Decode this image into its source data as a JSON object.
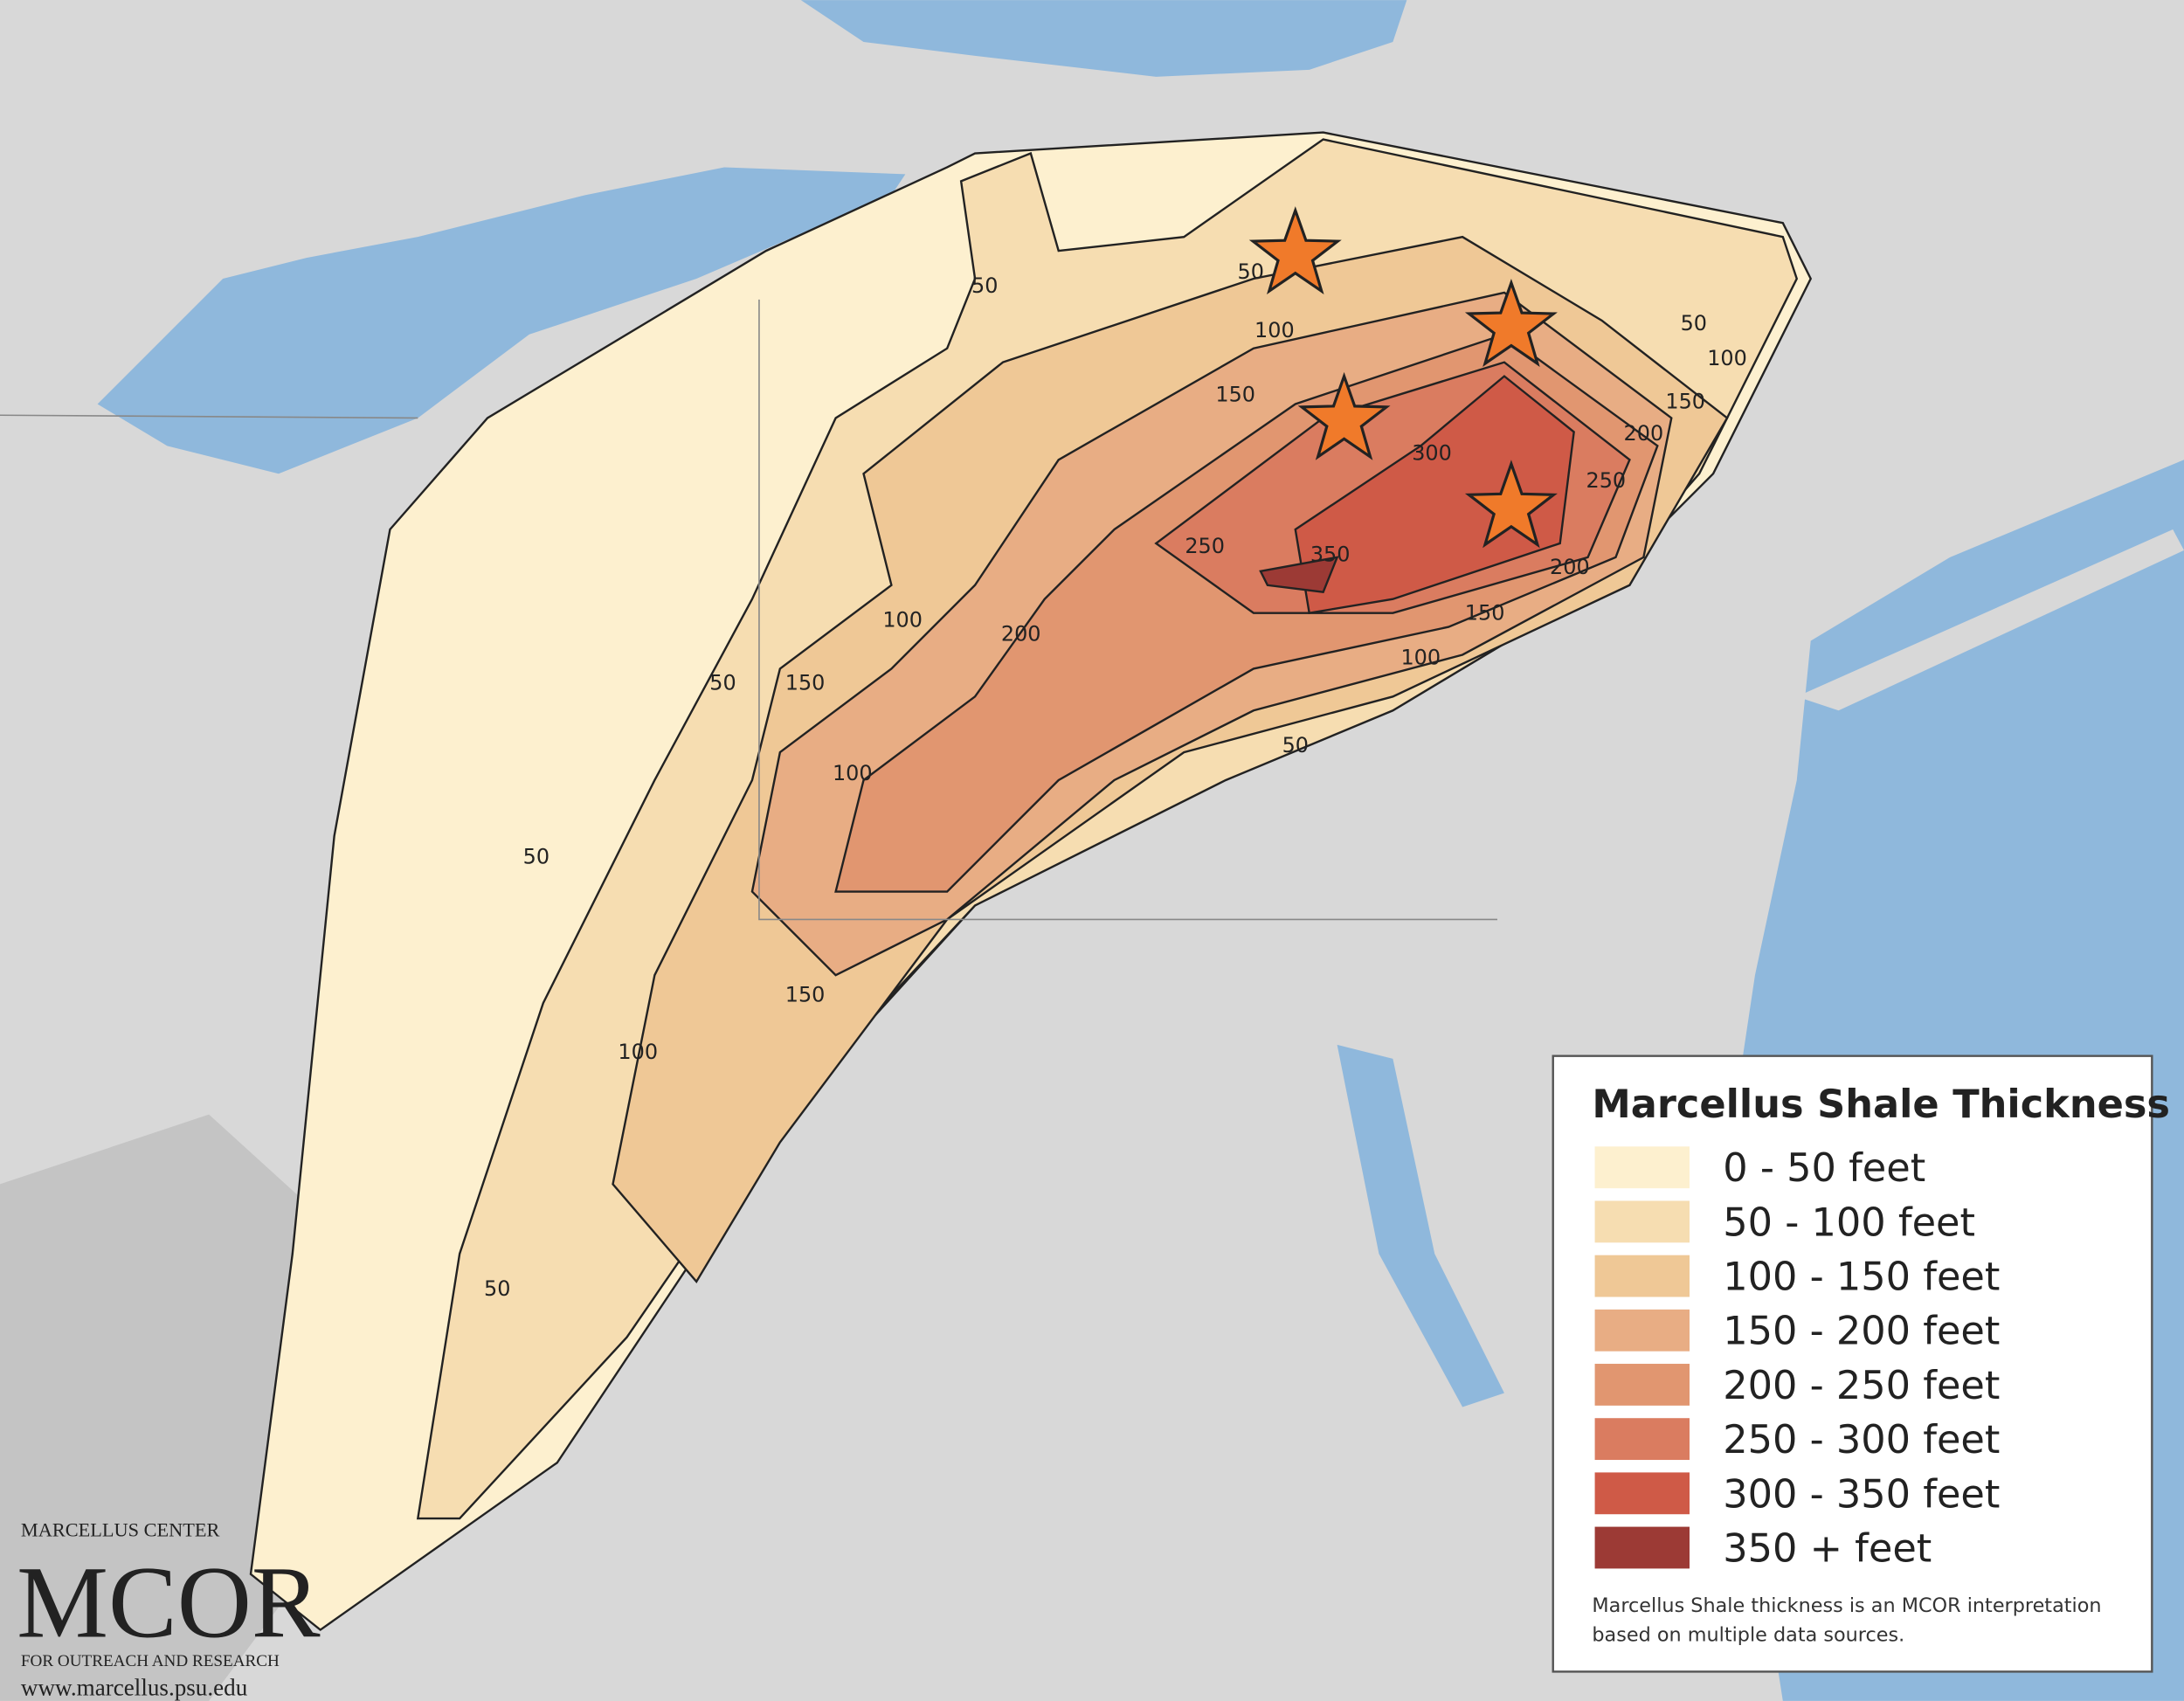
{
  "legend": {
    "title": "Marcellus Shale Thickness",
    "items": [
      {
        "label": "0 - 50 feet",
        "color": "#fdf0cf"
      },
      {
        "label": "50 - 100 feet",
        "color": "#f6ddb1"
      },
      {
        "label": "100 - 150 feet",
        "color": "#efc896"
      },
      {
        "label": "150 - 200 feet",
        "color": "#e8ad84"
      },
      {
        "label": "200 - 250 feet",
        "color": "#e19670"
      },
      {
        "label": "250 - 300 feet",
        "color": "#da7c60"
      },
      {
        "label": "300 - 350 feet",
        "color": "#cf5a47"
      },
      {
        "label": "350 + feet",
        "color": "#9c3a35"
      }
    ],
    "note": "Marcellus Shale thickness is an MCOR interpretation based on multiple data sources."
  },
  "logo": {
    "top": "MARCELLUS CENTER",
    "name": "MCOR",
    "tagline": "FOR OUTREACH AND RESEARCH",
    "url": "www.marcellus.psu.edu"
  },
  "contour_labels": [
    "50",
    "50",
    "100",
    "150",
    "50",
    "100",
    "150",
    "200",
    "250",
    "300",
    "350",
    "250",
    "200",
    "150",
    "100",
    "50",
    "100",
    "200",
    "50",
    "150",
    "100",
    "50",
    "150",
    "100",
    "50"
  ]
}
